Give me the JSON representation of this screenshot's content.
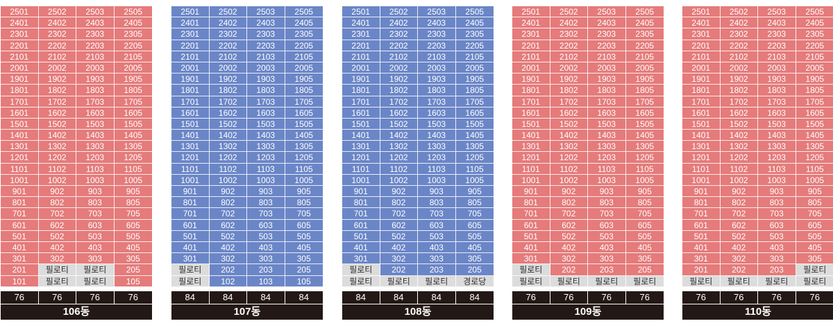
{
  "colors": {
    "sold": "#e57b7b",
    "blue": "#6b86c7",
    "pilotis": "#dcdcdc",
    "footer": "#231815"
  },
  "floors": [
    "25",
    "24",
    "23",
    "22",
    "21",
    "20",
    "19",
    "18",
    "17",
    "16",
    "15",
    "14",
    "13",
    "12",
    "11",
    "10",
    "9",
    "8",
    "7",
    "6",
    "5",
    "4",
    "3",
    "2",
    "1"
  ],
  "unit_suffixes": [
    "01",
    "02",
    "03",
    "05"
  ],
  "buildings": [
    {
      "name": "106동",
      "color": "red",
      "sizes": [
        "76",
        "76",
        "76",
        "76"
      ],
      "overrides": {
        "2": [
          "201",
          "필로티",
          "필로티",
          "205"
        ],
        "1": [
          "101",
          "필로티",
          "필로티",
          "105"
        ]
      }
    },
    {
      "name": "107동",
      "color": "blue",
      "sizes": [
        "84",
        "84",
        "84",
        "84"
      ],
      "overrides": {
        "2": [
          "필로티",
          "202",
          "203",
          "205"
        ],
        "1": [
          "필로티",
          "102",
          "103",
          "105"
        ]
      }
    },
    {
      "name": "108동",
      "color": "blue",
      "sizes": [
        "84",
        "84",
        "84",
        "84"
      ],
      "overrides": {
        "2": [
          "필로티",
          "202",
          "203",
          "205"
        ],
        "1": [
          "필로티",
          "필로티",
          "필로티",
          "경로당"
        ]
      }
    },
    {
      "name": "109동",
      "color": "red",
      "sizes": [
        "76",
        "76",
        "76",
        "76"
      ],
      "overrides": {
        "2": [
          "필로티",
          "202",
          "203",
          "205"
        ],
        "1": [
          "필로티",
          "필로티",
          "필로티",
          "필로티"
        ]
      }
    },
    {
      "name": "110동",
      "color": "red",
      "sizes": [
        "76",
        "76",
        "76",
        "76"
      ],
      "overrides": {
        "2": [
          "201",
          "202",
          "203",
          "필로티"
        ],
        "1": [
          "필로티",
          "필로티",
          "필로티",
          "필로티"
        ]
      }
    }
  ]
}
